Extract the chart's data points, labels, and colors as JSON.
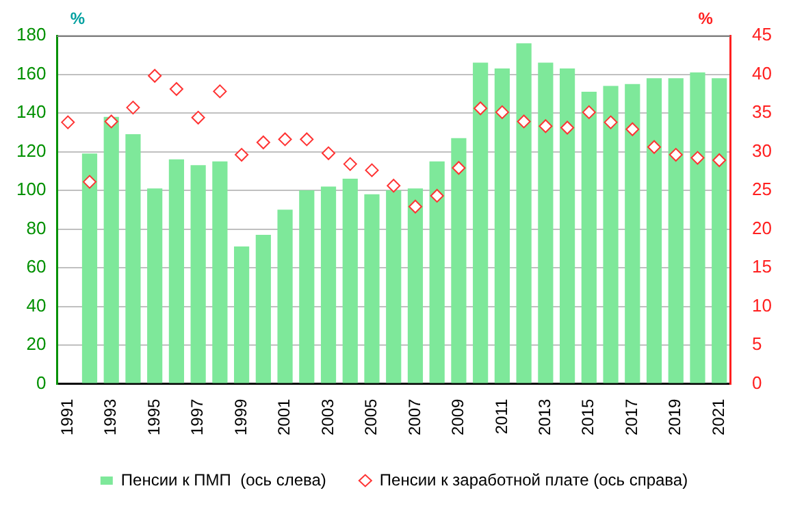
{
  "chart_data": {
    "type": "bar",
    "ylabel": "%",
    "y2label": "%",
    "categories": [
      "1991",
      null,
      "1993",
      null,
      "1995",
      null,
      "1997",
      null,
      "1999",
      null,
      "2001",
      null,
      "2003",
      null,
      "2005",
      null,
      "2007",
      null,
      "2009",
      null,
      "2011",
      null,
      "2013",
      null,
      "2015",
      null,
      "2017",
      null,
      "2019",
      null,
      "2021"
    ],
    "series": [
      {
        "name": "Пенсии к ПМП  (ось слева)",
        "type": "bar",
        "color": "#7ee89a",
        "values": [
          null,
          119,
          138,
          129,
          101,
          116,
          113,
          115,
          71,
          77,
          90,
          100,
          102,
          106,
          98,
          100,
          101,
          115,
          127,
          166,
          163,
          176,
          166,
          163,
          151,
          154,
          155,
          158,
          158,
          161,
          158
        ]
      },
      {
        "name": "Пенсии к заработной плате (ось справа)",
        "type": "scatter",
        "axis": "y2",
        "marker": "diamond",
        "color": "#ff3333",
        "values": [
          33.8,
          26.1,
          33.9,
          35.7,
          39.8,
          38.1,
          34.4,
          37.8,
          29.6,
          31.2,
          31.6,
          31.6,
          29.8,
          28.4,
          27.6,
          25.6,
          22.9,
          24.3,
          27.9,
          35.6,
          35.1,
          33.9,
          33.3,
          33.1,
          35.1,
          33.8,
          32.9,
          30.6,
          29.6,
          29.2,
          28.9
        ]
      }
    ],
    "ylim": [
      0,
      180
    ],
    "yticks": [
      0,
      20,
      40,
      60,
      80,
      100,
      120,
      140,
      160,
      180
    ],
    "y2lim": [
      0,
      45
    ],
    "y2ticks": [
      0,
      5,
      10,
      15,
      20,
      25,
      30,
      35,
      40,
      45
    ],
    "grid": "y",
    "legend": "bottom"
  }
}
